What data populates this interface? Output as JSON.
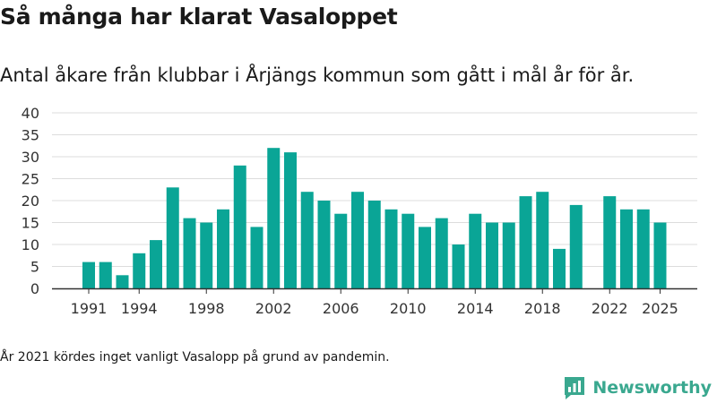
{
  "header": {
    "title": "Så många har klarat Vasaloppet",
    "subtitle": "Antal åkare från klubbar i Årjängs kommun som gått i mål år för år."
  },
  "footer": {
    "note": "År 2021 kördes inget vanligt Vasalopp på grund av pandemin.",
    "brand": "Newsworthy"
  },
  "colors": {
    "bar": "#0aa596",
    "grid": "#dcdcdc",
    "axis": "#333333",
    "brand": "#3aa88f"
  },
  "chart_data": {
    "type": "bar",
    "title": "Så många har klarat Vasaloppet",
    "xlabel": "",
    "ylabel": "",
    "ylim": [
      0,
      40
    ],
    "yticks": [
      0,
      5,
      10,
      15,
      20,
      25,
      30,
      35,
      40
    ],
    "xtick_labels": [
      "1991",
      "1994",
      "1998",
      "2002",
      "2006",
      "2010",
      "2014",
      "2018",
      "2022",
      "2025"
    ],
    "grid": true,
    "legend": "none",
    "categories": [
      1991,
      1992,
      1993,
      1994,
      1995,
      1996,
      1997,
      1998,
      1999,
      2000,
      2001,
      2002,
      2003,
      2004,
      2005,
      2006,
      2007,
      2008,
      2009,
      2010,
      2011,
      2012,
      2013,
      2014,
      2015,
      2016,
      2017,
      2018,
      2019,
      2020,
      2021,
      2022,
      2023,
      2024,
      2025
    ],
    "values": [
      6,
      6,
      3,
      8,
      11,
      23,
      16,
      15,
      18,
      28,
      14,
      32,
      31,
      22,
      20,
      17,
      22,
      20,
      18,
      17,
      14,
      16,
      10,
      17,
      15,
      15,
      21,
      22,
      9,
      19,
      null,
      21,
      18,
      18,
      15
    ]
  }
}
